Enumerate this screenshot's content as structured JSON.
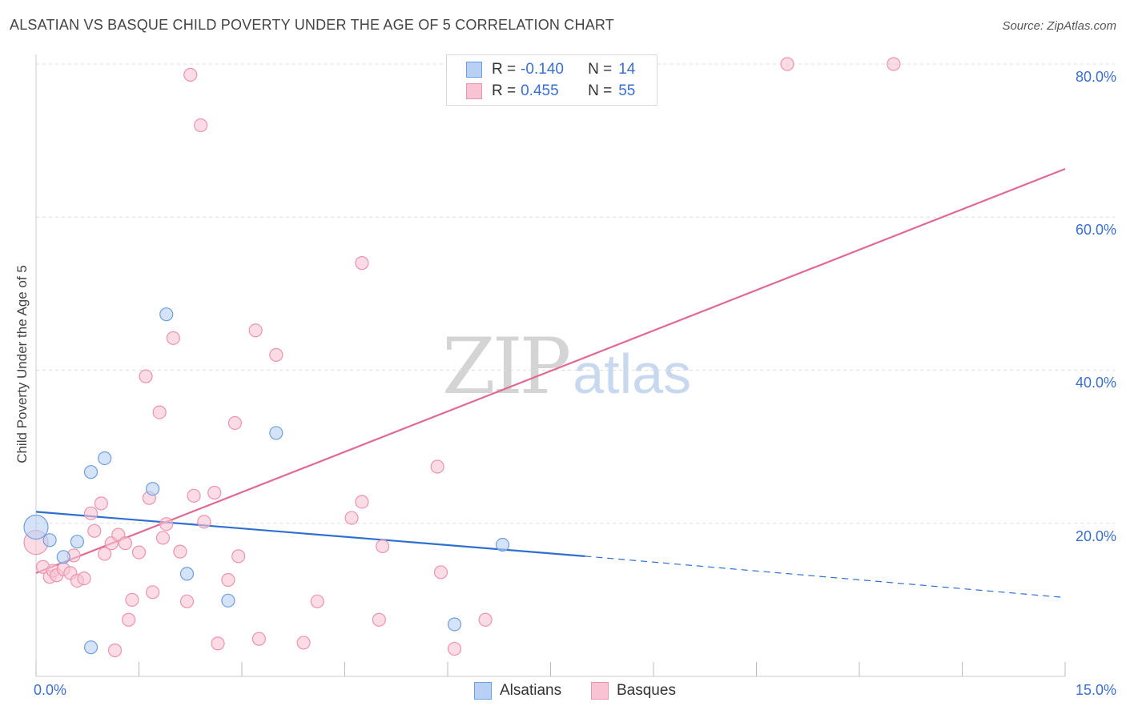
{
  "title": "ALSATIAN VS BASQUE CHILD POVERTY UNDER THE AGE OF 5 CORRELATION CHART",
  "source": "Source: ZipAtlas.com",
  "watermark": {
    "zip": "ZIP",
    "atlas": "atlas"
  },
  "legend": {
    "alsatians": {
      "r_label": "R =",
      "r_value": "-0.140",
      "n_label": "N =",
      "n_value": "14"
    },
    "basques": {
      "r_label": "R =",
      "r_value": "0.455",
      "n_label": "N =",
      "n_value": "55"
    }
  },
  "bottom_legend": {
    "alsatians": "Alsatians",
    "basques": "Basques"
  },
  "colors": {
    "alsatians_fill": "#b8d0f4",
    "alsatians_stroke": "#6f9ee0",
    "alsatians_line": "#2f6fcf",
    "basques_fill": "#f8c4d4",
    "basques_stroke": "#ec94b0",
    "basques_line": "#e06a93",
    "tick_label": "#3a6fd0",
    "grid": "#dddddd"
  },
  "chart_data": {
    "type": "scatter",
    "title": "ALSATIAN VS BASQUE CHILD POVERTY UNDER THE AGE OF 5 CORRELATION CHART",
    "xlabel": "",
    "ylabel": "Child Poverty Under the Age of 5",
    "xlim": [
      0,
      15
    ],
    "ylim": [
      0,
      80
    ],
    "x_tick_labels": [
      "0.0%",
      "15.0%"
    ],
    "y_ticks": [
      20,
      40,
      60,
      80
    ],
    "y_tick_labels": [
      "20.0%",
      "40.0%",
      "60.0%",
      "80.0%"
    ],
    "grid": true,
    "legend_position": "top-center",
    "series": [
      {
        "name": "Alsatians",
        "points": [
          [
            0.0,
            19.5
          ],
          [
            0.2,
            17.8
          ],
          [
            0.4,
            15.6
          ],
          [
            0.6,
            17.6
          ],
          [
            0.8,
            3.8
          ],
          [
            0.8,
            26.7
          ],
          [
            1.0,
            28.5
          ],
          [
            1.7,
            24.5
          ],
          [
            1.9,
            47.3
          ],
          [
            2.2,
            13.4
          ],
          [
            2.8,
            9.9
          ],
          [
            3.5,
            31.8
          ],
          [
            6.1,
            6.8
          ],
          [
            6.8,
            17.2
          ]
        ],
        "trend": {
          "x": [
            0,
            8.0
          ],
          "y": [
            21.5,
            15.7
          ],
          "dashed_to": [
            15,
            10.3
          ]
        }
      },
      {
        "name": "Basques",
        "points": [
          [
            0.0,
            17.5
          ],
          [
            0.1,
            14.3
          ],
          [
            0.2,
            13.0
          ],
          [
            0.25,
            13.8
          ],
          [
            0.3,
            13.2
          ],
          [
            0.4,
            14.0
          ],
          [
            0.5,
            13.5
          ],
          [
            0.55,
            15.8
          ],
          [
            0.6,
            12.5
          ],
          [
            0.7,
            12.8
          ],
          [
            0.8,
            21.3
          ],
          [
            0.85,
            19.0
          ],
          [
            0.95,
            22.6
          ],
          [
            1.0,
            16.0
          ],
          [
            1.1,
            17.4
          ],
          [
            1.15,
            3.4
          ],
          [
            1.2,
            18.5
          ],
          [
            1.3,
            17.4
          ],
          [
            1.35,
            7.4
          ],
          [
            1.4,
            10.0
          ],
          [
            1.5,
            16.2
          ],
          [
            1.6,
            39.2
          ],
          [
            1.65,
            23.3
          ],
          [
            1.7,
            11.0
          ],
          [
            1.8,
            34.5
          ],
          [
            1.85,
            18.1
          ],
          [
            1.9,
            19.9
          ],
          [
            2.0,
            44.2
          ],
          [
            2.1,
            16.3
          ],
          [
            2.2,
            9.8
          ],
          [
            2.25,
            78.6
          ],
          [
            2.3,
            23.6
          ],
          [
            2.4,
            72.0
          ],
          [
            2.45,
            20.2
          ],
          [
            2.6,
            24.0
          ],
          [
            2.65,
            4.3
          ],
          [
            2.8,
            12.6
          ],
          [
            2.9,
            33.1
          ],
          [
            2.95,
            15.7
          ],
          [
            3.2,
            45.2
          ],
          [
            3.25,
            4.9
          ],
          [
            3.5,
            42.0
          ],
          [
            3.9,
            4.4
          ],
          [
            4.1,
            9.8
          ],
          [
            4.6,
            20.7
          ],
          [
            4.75,
            22.8
          ],
          [
            4.75,
            54.0
          ],
          [
            5.0,
            7.4
          ],
          [
            5.05,
            17.0
          ],
          [
            5.85,
            27.4
          ],
          [
            5.9,
            13.6
          ],
          [
            6.1,
            3.6
          ],
          [
            6.55,
            7.4
          ],
          [
            10.95,
            80.0
          ],
          [
            12.5,
            80.0
          ]
        ],
        "trend": {
          "x": [
            0,
            15
          ],
          "y": [
            13.5,
            66.3
          ]
        }
      }
    ]
  }
}
